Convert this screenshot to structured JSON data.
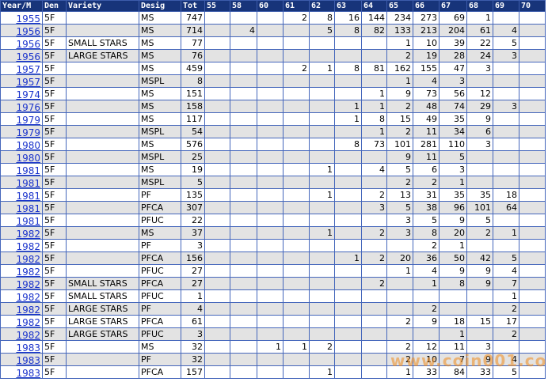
{
  "header": [
    "Year/M",
    "Den",
    "Variety",
    "Desig",
    "Tot",
    "55",
    "58",
    "60",
    "61",
    "62",
    "63",
    "64",
    "65",
    "66",
    "67",
    "68",
    "69",
    "70"
  ],
  "rows": [
    [
      "1955",
      "5F",
      null,
      "MS",
      747,
      null,
      null,
      null,
      2,
      8,
      16,
      144,
      234,
      273,
      69,
      1,
      null,
      null
    ],
    [
      "1956",
      "5F",
      null,
      "MS",
      714,
      null,
      4,
      null,
      null,
      5,
      8,
      82,
      133,
      213,
      204,
      61,
      4,
      null
    ],
    [
      "1956",
      "5F",
      "SMALL STARS",
      "MS",
      77,
      null,
      null,
      null,
      null,
      null,
      null,
      null,
      1,
      10,
      39,
      22,
      5,
      null
    ],
    [
      "1956",
      "5F",
      "LARGE STARS",
      "MS",
      76,
      null,
      null,
      null,
      null,
      null,
      null,
      null,
      2,
      19,
      28,
      24,
      3,
      null
    ],
    [
      "1957",
      "5F",
      null,
      "MS",
      459,
      null,
      null,
      null,
      2,
      1,
      8,
      81,
      162,
      155,
      47,
      3,
      null,
      null
    ],
    [
      "1957",
      "5F",
      null,
      "MSPL",
      8,
      null,
      null,
      null,
      null,
      null,
      null,
      null,
      1,
      4,
      3,
      null,
      null,
      null
    ],
    [
      "1974",
      "5F",
      null,
      "MS",
      151,
      null,
      null,
      null,
      null,
      null,
      null,
      1,
      9,
      73,
      56,
      12,
      null,
      null
    ],
    [
      "1976",
      "5F",
      null,
      "MS",
      158,
      null,
      null,
      null,
      null,
      null,
      1,
      1,
      2,
      48,
      74,
      29,
      3,
      null
    ],
    [
      "1979",
      "5F",
      null,
      "MS",
      117,
      null,
      null,
      null,
      null,
      null,
      1,
      8,
      15,
      49,
      35,
      9,
      null,
      null
    ],
    [
      "1979",
      "5F",
      null,
      "MSPL",
      54,
      null,
      null,
      null,
      null,
      null,
      null,
      1,
      2,
      11,
      34,
      6,
      null,
      null
    ],
    [
      "1980",
      "5F",
      null,
      "MS",
      576,
      null,
      null,
      null,
      null,
      null,
      8,
      73,
      101,
      281,
      110,
      3,
      null,
      null
    ],
    [
      "1980",
      "5F",
      null,
      "MSPL",
      25,
      null,
      null,
      null,
      null,
      null,
      null,
      null,
      9,
      11,
      5,
      null,
      null,
      null
    ],
    [
      "1981",
      "5F",
      null,
      "MS",
      19,
      null,
      null,
      null,
      null,
      1,
      null,
      4,
      5,
      6,
      3,
      null,
      null,
      null
    ],
    [
      "1981",
      "5F",
      null,
      "MSPL",
      5,
      null,
      null,
      null,
      null,
      null,
      null,
      null,
      2,
      2,
      1,
      null,
      null,
      null
    ],
    [
      "1981",
      "5F",
      null,
      "PF",
      135,
      null,
      null,
      null,
      null,
      1,
      null,
      2,
      13,
      31,
      35,
      35,
      18,
      null
    ],
    [
      "1981",
      "5F",
      null,
      "PFCA",
      307,
      null,
      null,
      null,
      null,
      null,
      null,
      3,
      5,
      38,
      96,
      101,
      64,
      null
    ],
    [
      "1981",
      "5F",
      null,
      "PFUC",
      22,
      null,
      null,
      null,
      null,
      null,
      null,
      null,
      3,
      5,
      9,
      5,
      null,
      null
    ],
    [
      "1982",
      "5F",
      null,
      "MS",
      37,
      null,
      null,
      null,
      null,
      1,
      null,
      2,
      3,
      8,
      20,
      2,
      1,
      null
    ],
    [
      "1982",
      "5F",
      null,
      "PF",
      3,
      null,
      null,
      null,
      null,
      null,
      null,
      null,
      null,
      2,
      1,
      null,
      null,
      null
    ],
    [
      "1982",
      "5F",
      null,
      "PFCA",
      156,
      null,
      null,
      null,
      null,
      null,
      1,
      2,
      20,
      36,
      50,
      42,
      5,
      null
    ],
    [
      "1982",
      "5F",
      null,
      "PFUC",
      27,
      null,
      null,
      null,
      null,
      null,
      null,
      null,
      1,
      4,
      9,
      9,
      4,
      null
    ],
    [
      "1982",
      "5F",
      "SMALL STARS",
      "PFCA",
      27,
      null,
      null,
      null,
      null,
      null,
      null,
      2,
      null,
      1,
      8,
      9,
      7,
      null
    ],
    [
      "1982",
      "5F",
      "SMALL STARS",
      "PFUC",
      1,
      null,
      null,
      null,
      null,
      null,
      null,
      null,
      null,
      null,
      null,
      null,
      1,
      null
    ],
    [
      "1982",
      "5F",
      "LARGE STARS",
      "PF",
      4,
      null,
      null,
      null,
      null,
      null,
      null,
      null,
      null,
      2,
      null,
      null,
      2,
      null
    ],
    [
      "1982",
      "5F",
      "LARGE STARS",
      "PFCA",
      61,
      null,
      null,
      null,
      null,
      null,
      null,
      null,
      2,
      9,
      18,
      15,
      17,
      null
    ],
    [
      "1982",
      "5F",
      "LARGE STARS",
      "PFUC",
      3,
      null,
      null,
      null,
      null,
      null,
      null,
      null,
      null,
      null,
      1,
      null,
      2,
      null
    ],
    [
      "1983",
      "5F",
      null,
      "MS",
      32,
      null,
      null,
      1,
      1,
      2,
      null,
      null,
      2,
      12,
      11,
      3,
      null,
      null
    ],
    [
      "1983",
      "5F",
      null,
      "PF",
      32,
      null,
      null,
      null,
      null,
      null,
      null,
      null,
      2,
      10,
      7,
      9,
      4,
      null
    ],
    [
      "1983",
      "5F",
      null,
      "PFCA",
      157,
      null,
      null,
      null,
      null,
      1,
      null,
      null,
      1,
      33,
      84,
      33,
      5,
      null
    ]
  ],
  "watermark": "www.coin001.com"
}
